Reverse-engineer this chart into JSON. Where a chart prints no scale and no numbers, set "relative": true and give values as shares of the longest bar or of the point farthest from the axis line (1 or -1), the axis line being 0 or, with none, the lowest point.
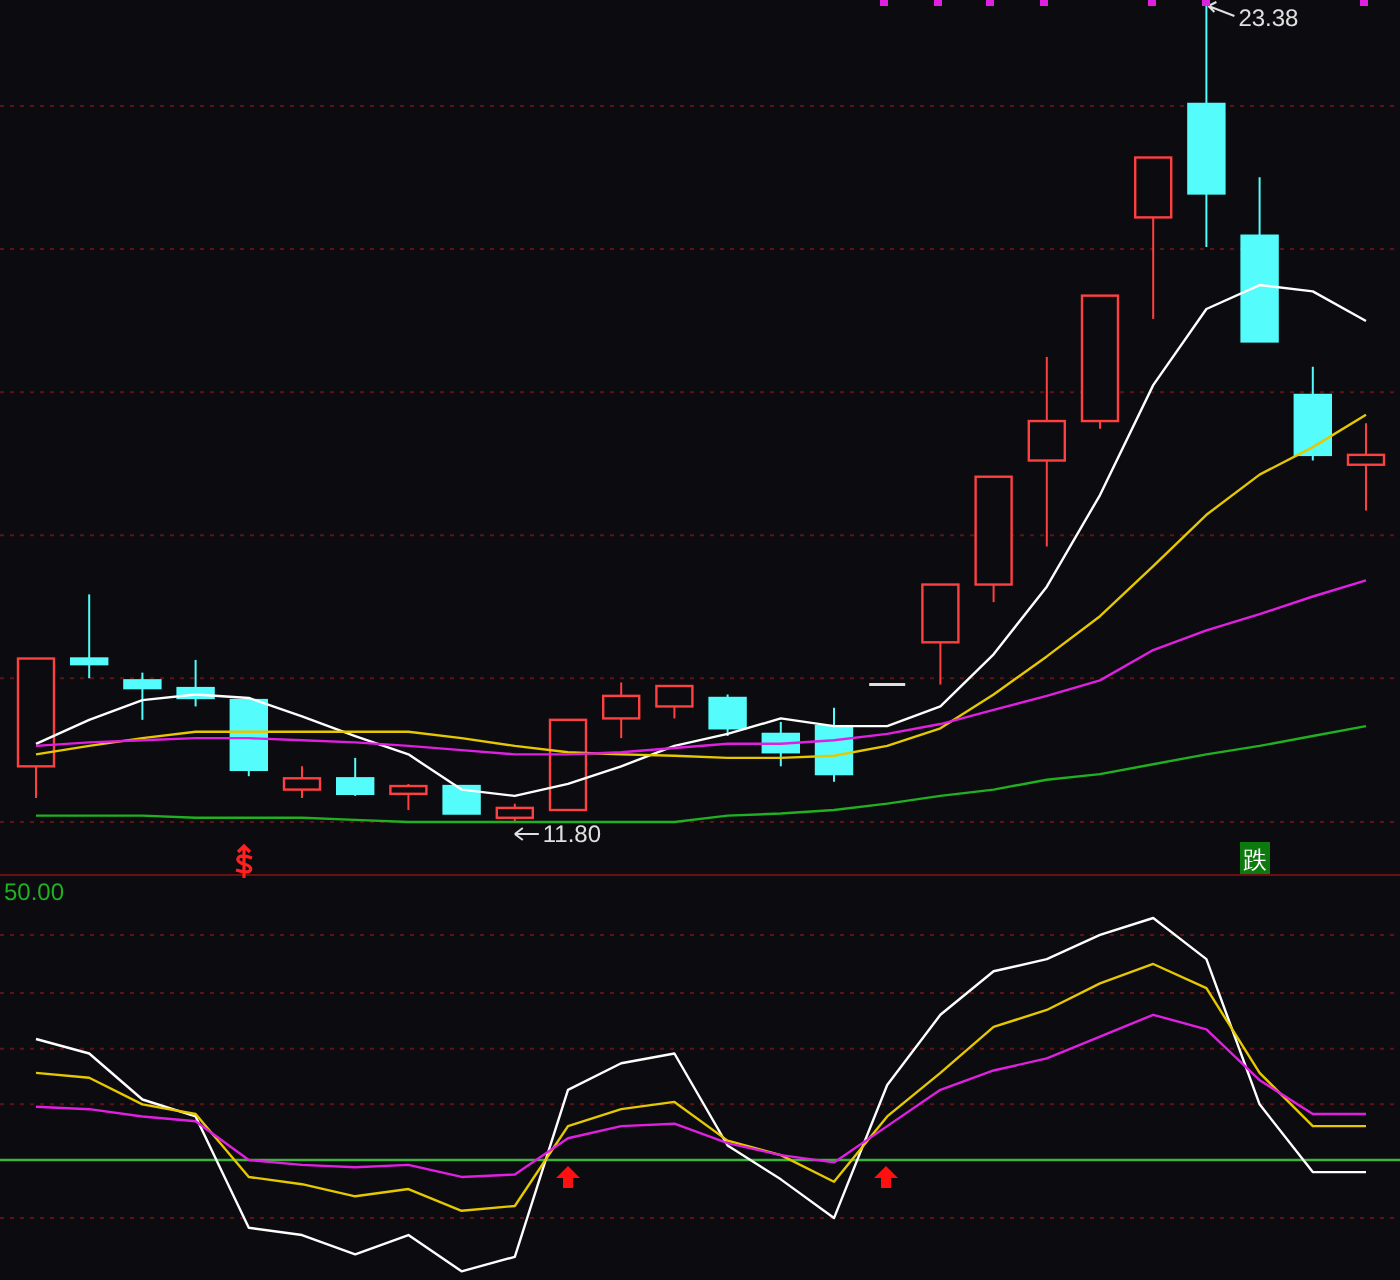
{
  "chart_data": [
    {
      "type": "candlestick",
      "categories": [
        null,
        null,
        null,
        null,
        null,
        null,
        null,
        null,
        null,
        null,
        null,
        null,
        null,
        null,
        null,
        null,
        null,
        null,
        null,
        null,
        null,
        null,
        null,
        null,
        null,
        null
      ],
      "ohlc": [
        [
          12.59,
          14.12,
          12.14,
          14.12
        ],
        [
          14.12,
          15.03,
          13.84,
          14.04
        ],
        [
          13.81,
          13.92,
          13.25,
          13.7
        ],
        [
          13.7,
          14.1,
          13.44,
          13.56
        ],
        [
          13.53,
          13.53,
          12.45,
          12.54
        ],
        [
          12.26,
          12.59,
          12.14,
          12.42
        ],
        [
          12.42,
          12.71,
          12.17,
          12.2
        ],
        [
          12.2,
          12.34,
          11.97,
          12.31
        ],
        [
          12.31,
          12.31,
          11.92,
          11.92
        ],
        [
          11.86,
          12.06,
          11.8,
          12.0
        ],
        [
          11.97,
          13.25,
          11.97,
          13.25
        ],
        [
          13.27,
          13.78,
          12.99,
          13.59
        ],
        [
          13.44,
          13.73,
          13.27,
          13.73
        ],
        [
          13.56,
          13.61,
          13.02,
          13.13
        ],
        [
          13.05,
          13.22,
          12.59,
          12.79
        ],
        [
          13.16,
          13.42,
          12.37,
          12.48
        ],
        [
          13.75,
          13.75,
          13.75,
          13.75
        ],
        [
          14.35,
          15.17,
          13.75,
          15.17
        ],
        [
          15.17,
          16.7,
          14.92,
          16.7
        ],
        [
          16.93,
          18.4,
          15.71,
          17.49
        ],
        [
          17.49,
          19.27,
          17.38,
          19.27
        ],
        [
          20.38,
          21.23,
          18.94,
          21.23
        ],
        [
          21.99,
          23.38,
          19.96,
          20.72
        ],
        [
          20.12,
          20.95,
          18.62,
          18.62
        ],
        [
          17.86,
          18.26,
          16.93,
          17.01
        ],
        [
          16.87,
          17.46,
          16.22,
          17.01
        ]
      ],
      "colors": [
        "#ff4040",
        "#54fcfc",
        "#54fcfc",
        "#54fcfc",
        "#54fcfc",
        "#ff4040",
        "#54fcfc",
        "#ff4040",
        "#54fcfc",
        "#ff4040",
        "#ff4040",
        "#ff4040",
        "#ff4040",
        "#54fcfc",
        "#54fcfc",
        "#54fcfc",
        "#e0e0e0",
        "#ff4040",
        "#ff4040",
        "#ff4040",
        "#ff4040",
        "#ff4040",
        "#54fcfc",
        "#54fcfc",
        "#54fcfc",
        "#ff4040"
      ],
      "series": [
        {
          "type": "line",
          "color": "#ffffff",
          "values": [
            12.91,
            13.25,
            13.53,
            13.61,
            13.56,
            13.3,
            13.02,
            12.76,
            12.26,
            12.17,
            12.34,
            12.59,
            12.88,
            13.05,
            13.27,
            13.16,
            13.16,
            13.44,
            14.18,
            15.14,
            16.44,
            18.0,
            19.08,
            19.42,
            19.33,
            18.91
          ]
        },
        {
          "type": "line",
          "color": "#e6c800",
          "values": [
            12.76,
            12.88,
            12.99,
            13.08,
            13.08,
            13.08,
            13.08,
            13.08,
            12.99,
            12.88,
            12.79,
            12.76,
            12.74,
            12.71,
            12.71,
            12.74,
            12.88,
            13.13,
            13.61,
            14.15,
            14.72,
            15.43,
            16.16,
            16.73,
            17.12,
            17.58
          ]
        },
        {
          "type": "line",
          "color": "#e020e0",
          "values": [
            12.88,
            12.93,
            12.96,
            12.99,
            12.99,
            12.96,
            12.93,
            12.88,
            12.82,
            12.76,
            12.76,
            12.79,
            12.85,
            12.91,
            12.91,
            12.96,
            13.05,
            13.19,
            13.39,
            13.59,
            13.81,
            14.24,
            14.52,
            14.75,
            15.0,
            15.23
          ]
        },
        {
          "type": "line",
          "color": "#20b020",
          "values": [
            11.89,
            11.89,
            11.89,
            11.86,
            11.86,
            11.86,
            11.83,
            11.8,
            11.8,
            11.8,
            11.8,
            11.8,
            11.8,
            11.89,
            11.92,
            11.97,
            12.06,
            12.17,
            12.26,
            12.4,
            12.48,
            12.62,
            12.76,
            12.88,
            13.02,
            13.16
          ]
        }
      ],
      "annotations": [
        "23.38",
        "11.80",
        "跌"
      ],
      "ref_lines": [
        {
          "axis": "y",
          "value": 21.96,
          "color": "#5a1414",
          "line_style": "dashed"
        },
        {
          "axis": "y",
          "value": 19.93,
          "color": "#5a1414",
          "line_style": "dashed"
        },
        {
          "axis": "y",
          "value": 17.9,
          "color": "#5a1414",
          "line_style": "dashed"
        },
        {
          "axis": "y",
          "value": 15.87,
          "color": "#5a1414",
          "line_style": "dashed"
        },
        {
          "axis": "y",
          "value": 13.84,
          "color": "#5a1414",
          "line_style": "dashed"
        },
        {
          "axis": "y",
          "value": 11.8,
          "color": "#5a1414",
          "line_style": "dashed"
        }
      ],
      "tick_labels": false
    },
    {
      "type": "line",
      "relative": true,
      "categories": [
        null,
        null,
        null,
        null,
        null,
        null,
        null,
        null,
        null,
        null,
        null,
        null,
        null,
        null,
        null,
        null,
        null,
        null,
        null,
        null,
        null,
        null,
        null,
        null,
        null,
        null
      ],
      "series": [
        {
          "color": "#ffffff",
          "values": [
            0.5,
            0.44,
            0.25,
            0.18,
            -0.28,
            -0.31,
            -0.39,
            -0.31,
            -0.46,
            -0.4,
            0.29,
            0.4,
            0.44,
            0.06,
            -0.08,
            -0.24,
            0.31,
            0.6,
            0.78,
            0.83,
            0.93,
            1,
            0.83,
            0.23,
            -0.05,
            -0.05
          ]
        },
        {
          "color": "#e6c800",
          "values": [
            0.36,
            0.34,
            0.23,
            0.19,
            -0.07,
            -0.1,
            -0.15,
            -0.12,
            -0.21,
            -0.19,
            0.14,
            0.21,
            0.24,
            0.08,
            0.02,
            -0.09,
            0.18,
            0.36,
            0.55,
            0.62,
            0.73,
            0.81,
            0.71,
            0.36,
            0.14,
            0.14
          ]
        },
        {
          "color": "#e020e0",
          "values": [
            0.22,
            0.21,
            0.18,
            0.16,
            0,
            -0.02,
            -0.03,
            -0.02,
            -0.07,
            -0.06,
            0.09,
            0.14,
            0.15,
            0.07,
            0.02,
            -0.01,
            0.14,
            0.29,
            0.37,
            0.42,
            0.51,
            0.6,
            0.54,
            0.33,
            0.19,
            0.19
          ]
        }
      ],
      "annotations": [
        "50.00"
      ],
      "ref_lines": [
        {
          "axis": "y",
          "value": 0,
          "color": "#3cb43c",
          "line_style": "solid"
        },
        {
          "axis": "y",
          "value": 0.93,
          "color": "#5a1414",
          "line_style": "dashed"
        },
        {
          "axis": "y",
          "value": 0.69,
          "color": "#5a1414",
          "line_style": "dashed"
        },
        {
          "axis": "y",
          "value": 0.46,
          "color": "#5a1414",
          "line_style": "dashed"
        },
        {
          "axis": "y",
          "value": 0.23,
          "color": "#5a1414",
          "line_style": "dashed"
        },
        {
          "axis": "y",
          "value": -0.24,
          "color": "#5a1414",
          "line_style": "dashed"
        }
      ],
      "tick_labels": false
    }
  ]
}
